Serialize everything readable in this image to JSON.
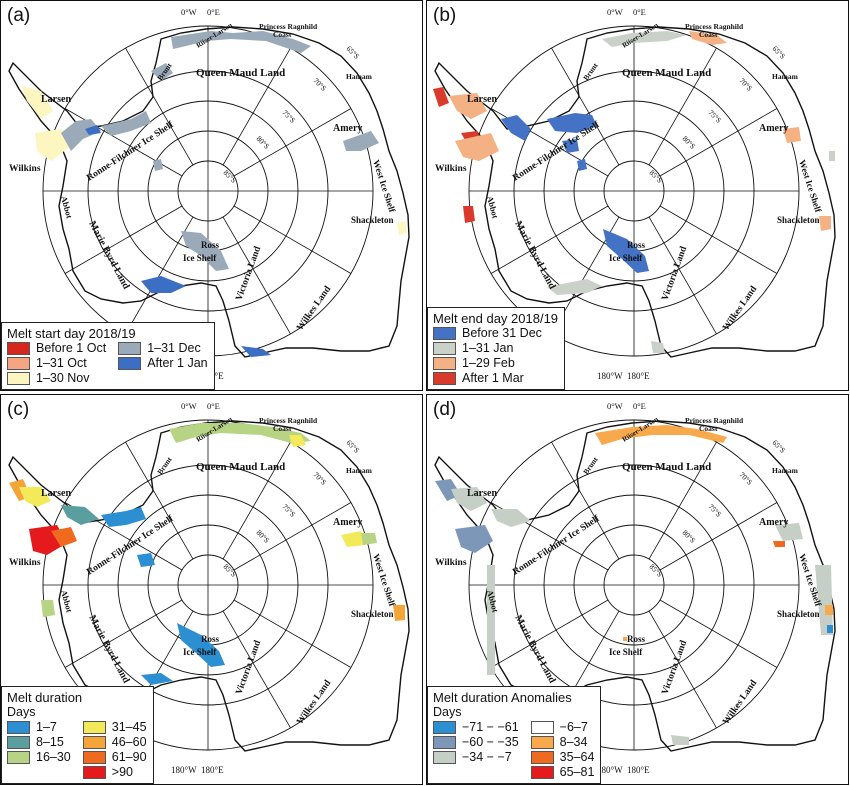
{
  "panels": [
    {
      "label": "(a)",
      "legend": {
        "title": "Melt start day 2018/19",
        "subtitle": "",
        "columns": [
          [
            {
              "label": "Before 1 Oct",
              "color": "#d7261e"
            },
            {
              "label": "1–31 Oct",
              "color": "#f4a582"
            },
            {
              "label": "1–30 Nov",
              "color": "#fdf6c0"
            }
          ],
          [
            {
              "label": "1–31 Dec",
              "color": "#9aaab8"
            },
            {
              "label": "After 1 Jan",
              "color": "#3a6fc4"
            }
          ]
        ]
      }
    },
    {
      "label": "(b)",
      "legend": {
        "title": "Melt end day 2018/19",
        "subtitle": "",
        "columns": [
          [
            {
              "label": "Before 31 Dec",
              "color": "#4472c4"
            },
            {
              "label": "1–31 Jan",
              "color": "#c9d1c9"
            },
            {
              "label": "1–29 Feb",
              "color": "#f4b183"
            },
            {
              "label": "After 1 Mar",
              "color": "#d93a2b"
            }
          ]
        ]
      }
    },
    {
      "label": "(c)",
      "legend": {
        "title": "Melt duration",
        "subtitle": "Days",
        "columns": [
          [
            {
              "label": "1–7",
              "color": "#2b8fd1"
            },
            {
              "label": "8–15",
              "color": "#5b9ea0"
            },
            {
              "label": "16–30",
              "color": "#b7d384"
            }
          ],
          [
            {
              "label": "31–45",
              "color": "#f3ea5a"
            },
            {
              "label": "46–60",
              "color": "#f4a53a"
            },
            {
              "label": "61–90",
              "color": "#ef6a1f"
            },
            {
              "label": ">90",
              "color": "#e41a1c"
            }
          ]
        ]
      }
    },
    {
      "label": "(d)",
      "legend": {
        "title": "Melt duration Anomalies",
        "subtitle": "Days",
        "columns": [
          [
            {
              "label": "−71 − −61",
              "color": "#2b8fd1"
            },
            {
              "label": "−60 − −35",
              "color": "#7c97b8"
            },
            {
              "label": "−34 − −7",
              "color": "#c5cfc5"
            }
          ],
          [
            {
              "label": "−6–7",
              "color": "#ffffff"
            },
            {
              "label": "8–34",
              "color": "#f7a94b"
            },
            {
              "label": "35–64",
              "color": "#ef6a1f"
            },
            {
              "label": "65–81",
              "color": "#e41a1c"
            }
          ]
        ]
      }
    }
  ],
  "map_labels": {
    "queen_maud": "Queen Maud Land",
    "princess_1": "Princess Ragnhild",
    "princess_2": "Coast",
    "riiser": "Riiser-Larsen",
    "brunt": "Brunt",
    "hamam": "Hamam",
    "larsen": "Larsen",
    "wilkins": "Wilkins",
    "abbot": "Abbot",
    "ronne": "Ronne-Filchner Ice Shelf",
    "amery": "Amery",
    "west": "West Ice Shelf",
    "shackleton": "Shackleton",
    "marie": "Marie Byrd Land",
    "ross_1": "Ross",
    "ross_2": "Ice Shelf",
    "victoria": "Victoria Land",
    "wilkes": "Wilkes Land"
  },
  "graticule": {
    "lon_0w": "0°W",
    "lon_0e": "0°E",
    "lon_180w": "180°W",
    "lon_180e": "180°E",
    "lat_65": "65°S",
    "lat_70": "70°S",
    "lat_75": "75°S",
    "lat_80": "80°S",
    "lat_85": "85°S"
  }
}
